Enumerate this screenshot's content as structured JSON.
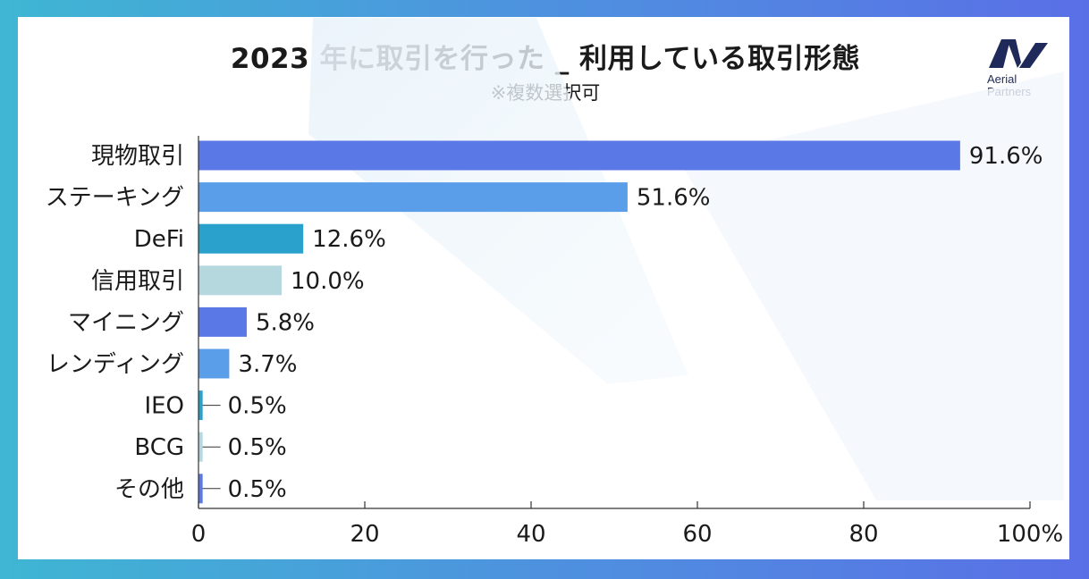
{
  "title": "2023 年に取引を行った _ 利用している取引形態",
  "subtitle": "※複数選択可",
  "logo": {
    "line1": "Aerial",
    "line2": "Partners"
  },
  "colors": {
    "border_left": "#3fb6d3",
    "border_right": "#5a6fe6",
    "bar_colors": [
      "#5a78e6",
      "#5a9de8",
      "#2aa0cc",
      "#b5d8de",
      "#5a78e6",
      "#5a9de8",
      "#2aa0cc",
      "#b5d8de",
      "#5a78e6"
    ]
  },
  "chart_data": {
    "type": "bar",
    "orientation": "horizontal",
    "categories": [
      "現物取引",
      "ステーキング",
      "DeFi",
      "信用取引",
      "マイニング",
      "レンディング",
      "IEO",
      "BCG",
      "その他"
    ],
    "values": [
      91.6,
      51.6,
      12.6,
      10.0,
      5.8,
      3.7,
      0.5,
      0.5,
      0.5
    ],
    "value_labels": [
      "91.6%",
      "51.6%",
      "12.6%",
      "10.0%",
      "5.8%",
      "3.7%",
      "0.5%",
      "0.5%",
      "0.5%"
    ],
    "xlim": [
      0,
      100
    ],
    "xticks": [
      0,
      20,
      40,
      60,
      80,
      100
    ],
    "xtick_labels": [
      "0",
      "20",
      "40",
      "60",
      "80",
      "100%"
    ],
    "grid": false,
    "legend": "none"
  }
}
